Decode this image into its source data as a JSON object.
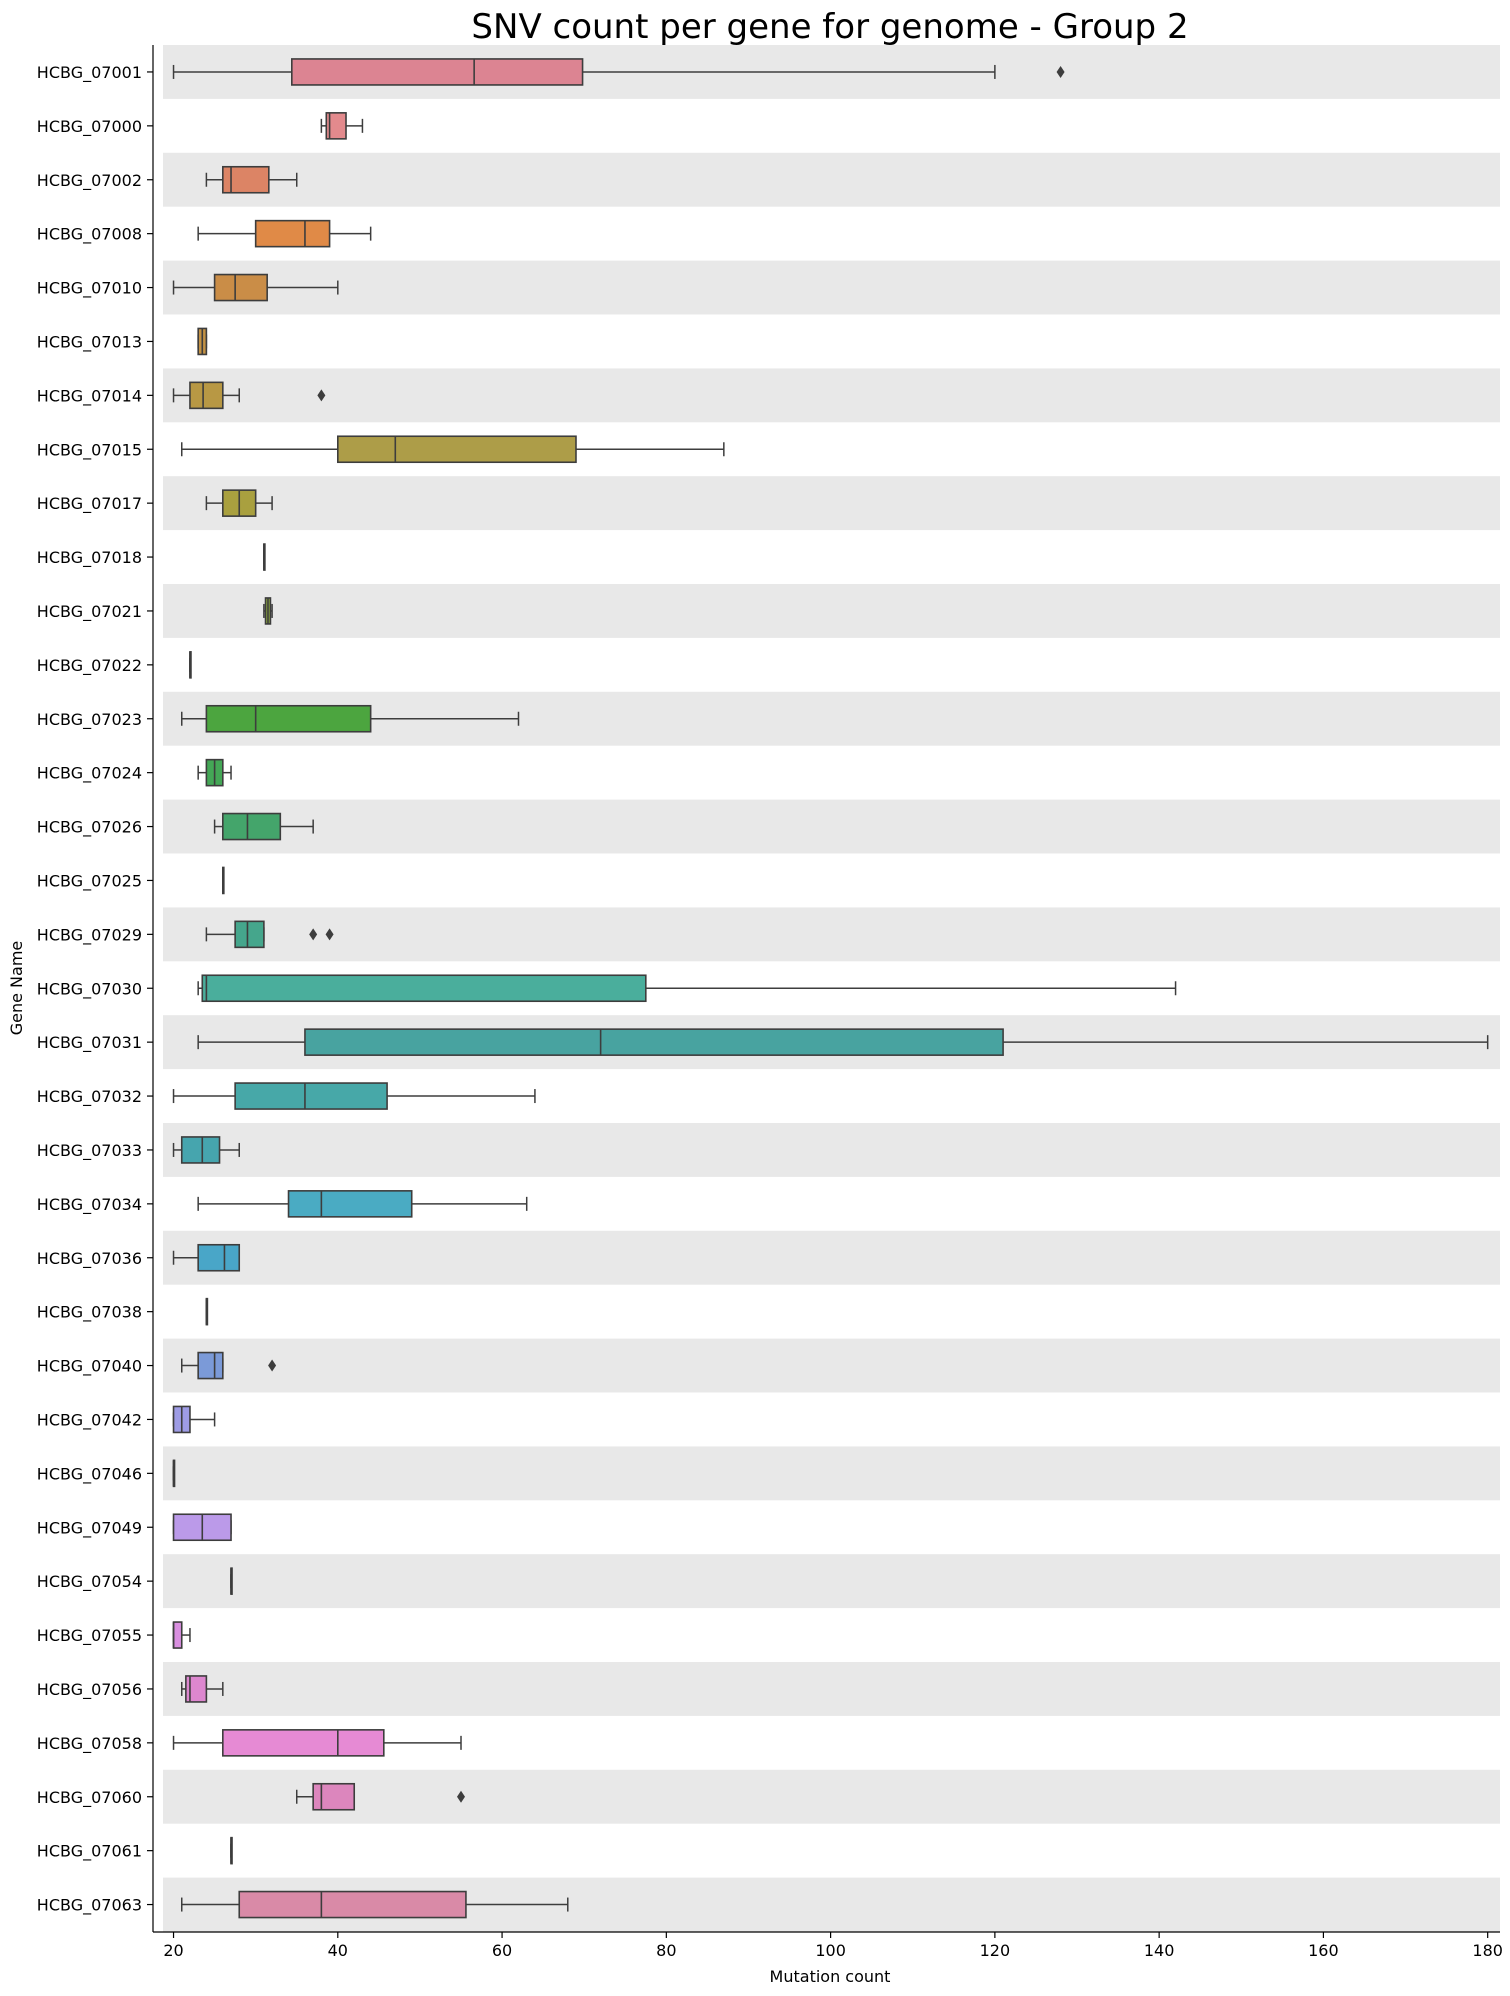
{
  "chart_data": {
    "type": "boxplot",
    "orientation": "horizontal",
    "title": "SNV count per gene for genome - Group 2",
    "xlabel": "Mutation count",
    "ylabel": "Gene Name",
    "xlim": [
      17.5,
      181.5
    ],
    "xticks": [
      20,
      40,
      60,
      80,
      100,
      120,
      140,
      160,
      180
    ],
    "row_shading": "alternating light gray bands on even rows",
    "grid": false,
    "series": [
      {
        "name": "HCBG_07001",
        "min": 20,
        "q1": 34.4,
        "median": 56.6,
        "q3": 69.8,
        "max": 120,
        "outliers": [
          128
        ],
        "color": "#dc8492"
      },
      {
        "name": "HCBG_07000",
        "min": 38,
        "q1": 38.6,
        "median": 39,
        "q3": 41,
        "max": 43,
        "outliers": [],
        "color": "#e38a8d"
      },
      {
        "name": "HCBG_07002",
        "min": 24,
        "q1": 26,
        "median": 27,
        "q3": 31.6,
        "max": 35,
        "outliers": [],
        "color": "#dc8465"
      },
      {
        "name": "HCBG_07008",
        "min": 23,
        "q1": 30,
        "median": 36,
        "q3": 39,
        "max": 44,
        "outliers": [],
        "color": "#e08a47"
      },
      {
        "name": "HCBG_07010",
        "min": 20,
        "q1": 25,
        "median": 27.5,
        "q3": 31.4,
        "max": 40,
        "outliers": [],
        "color": "#ca8d47"
      },
      {
        "name": "HCBG_07013",
        "min": 23,
        "q1": 23,
        "median": 23.5,
        "q3": 24,
        "max": 24,
        "outliers": [],
        "color": "#c39244"
      },
      {
        "name": "HCBG_07014",
        "min": 20,
        "q1": 22,
        "median": 23.6,
        "q3": 26,
        "max": 28,
        "outliers": [
          38
        ],
        "color": "#b89844"
      },
      {
        "name": "HCBG_07015",
        "min": 21,
        "q1": 40,
        "median": 47,
        "q3": 69,
        "max": 87,
        "outliers": [],
        "color": "#ad9d48"
      },
      {
        "name": "HCBG_07017",
        "min": 24,
        "q1": 26,
        "median": 28,
        "q3": 30,
        "max": 32,
        "outliers": [],
        "color": "#a9a03f"
      },
      {
        "name": "HCBG_07018",
        "min": 31,
        "q1": 31,
        "median": 31,
        "q3": 31,
        "max": 31,
        "outliers": [],
        "color": "#99a43f"
      },
      {
        "name": "HCBG_07021",
        "min": 31,
        "q1": 31.2,
        "median": 31.5,
        "q3": 31.8,
        "max": 32,
        "outliers": [],
        "color": "#8aa63e"
      },
      {
        "name": "HCBG_07022",
        "min": 22,
        "q1": 22,
        "median": 22,
        "q3": 22,
        "max": 22,
        "outliers": [],
        "color": "#6fa63e"
      },
      {
        "name": "HCBG_07023",
        "min": 21,
        "q1": 24,
        "median": 30,
        "q3": 44,
        "max": 62,
        "outliers": [],
        "color": "#4ca53f"
      },
      {
        "name": "HCBG_07024",
        "min": 23,
        "q1": 24,
        "median": 25,
        "q3": 26,
        "max": 27,
        "outliers": [],
        "color": "#44a756"
      },
      {
        "name": "HCBG_07026",
        "min": 25,
        "q1": 26,
        "median": 29,
        "q3": 33,
        "max": 37,
        "outliers": [],
        "color": "#44a56b"
      },
      {
        "name": "HCBG_07025",
        "min": 26,
        "q1": 26,
        "median": 26,
        "q3": 26,
        "max": 26,
        "outliers": [],
        "color": "#45a67d"
      },
      {
        "name": "HCBG_07029",
        "min": 24,
        "q1": 27.5,
        "median": 29,
        "q3": 31,
        "max": 31,
        "outliers": [
          37,
          39
        ],
        "color": "#45a68c"
      },
      {
        "name": "HCBG_07030",
        "min": 23,
        "q1": 23.5,
        "median": 24,
        "q3": 77.5,
        "max": 142,
        "outliers": [],
        "color": "#4aae9c"
      },
      {
        "name": "HCBG_07031",
        "min": 23,
        "q1": 36,
        "median": 72,
        "q3": 121,
        "max": 180,
        "outliers": [],
        "color": "#48a3a0"
      },
      {
        "name": "HCBG_07032",
        "min": 20,
        "q1": 27.5,
        "median": 36,
        "q3": 46,
        "max": 64,
        "outliers": [],
        "color": "#47a8a8"
      },
      {
        "name": "HCBG_07033",
        "min": 20,
        "q1": 21,
        "median": 23.5,
        "q3": 25.6,
        "max": 28,
        "outliers": [],
        "color": "#46a5ae"
      },
      {
        "name": "HCBG_07034",
        "min": 23,
        "q1": 34,
        "median": 38,
        "q3": 49,
        "max": 63,
        "outliers": [],
        "color": "#4aabc3"
      },
      {
        "name": "HCBG_07036",
        "min": 20,
        "q1": 23,
        "median": 26.2,
        "q3": 28,
        "max": 28,
        "outliers": [],
        "color": "#49a6c8"
      },
      {
        "name": "HCBG_07038",
        "min": 24,
        "q1": 24,
        "median": 24,
        "q3": 24,
        "max": 24,
        "outliers": [],
        "color": "#5aa0cf"
      },
      {
        "name": "HCBG_07040",
        "min": 21,
        "q1": 23,
        "median": 25,
        "q3": 26,
        "max": 26,
        "outliers": [
          32
        ],
        "color": "#7b9ad8"
      },
      {
        "name": "HCBG_07042",
        "min": 20,
        "q1": 20,
        "median": 21,
        "q3": 22,
        "max": 25,
        "outliers": [],
        "color": "#9e9ce5"
      },
      {
        "name": "HCBG_07046",
        "min": 20,
        "q1": 20,
        "median": 20,
        "q3": 20,
        "max": 20,
        "outliers": [],
        "color": "#a49ce5"
      },
      {
        "name": "HCBG_07049",
        "min": 20,
        "q1": 20,
        "median": 23.5,
        "q3": 27,
        "max": 27,
        "outliers": [],
        "color": "#bb9ae9"
      },
      {
        "name": "HCBG_07054",
        "min": 27,
        "q1": 27,
        "median": 27,
        "q3": 27,
        "max": 27,
        "outliers": [],
        "color": "#c996e6"
      },
      {
        "name": "HCBG_07055",
        "min": 20,
        "q1": 20,
        "median": 20,
        "q3": 21,
        "max": 22,
        "outliers": [],
        "color": "#d98fe0"
      },
      {
        "name": "HCBG_07056",
        "min": 21,
        "q1": 21.5,
        "median": 22,
        "q3": 24,
        "max": 26,
        "outliers": [],
        "color": "#dd87cf"
      },
      {
        "name": "HCBG_07058",
        "min": 20,
        "q1": 26,
        "median": 40,
        "q3": 45.6,
        "max": 55,
        "outliers": [],
        "color": "#e68ad4"
      },
      {
        "name": "HCBG_07060",
        "min": 35,
        "q1": 37,
        "median": 38,
        "q3": 42,
        "max": 42,
        "outliers": [
          55
        ],
        "color": "#dc86bd"
      },
      {
        "name": "HCBG_07061",
        "min": 27,
        "q1": 27,
        "median": 27,
        "q3": 27,
        "max": 27,
        "outliers": [],
        "color": "#dc86ad"
      },
      {
        "name": "HCBG_07063",
        "min": 21,
        "q1": 28,
        "median": 38,
        "q3": 55.6,
        "max": 68,
        "outliers": [],
        "color": "#d98aa7"
      }
    ]
  }
}
